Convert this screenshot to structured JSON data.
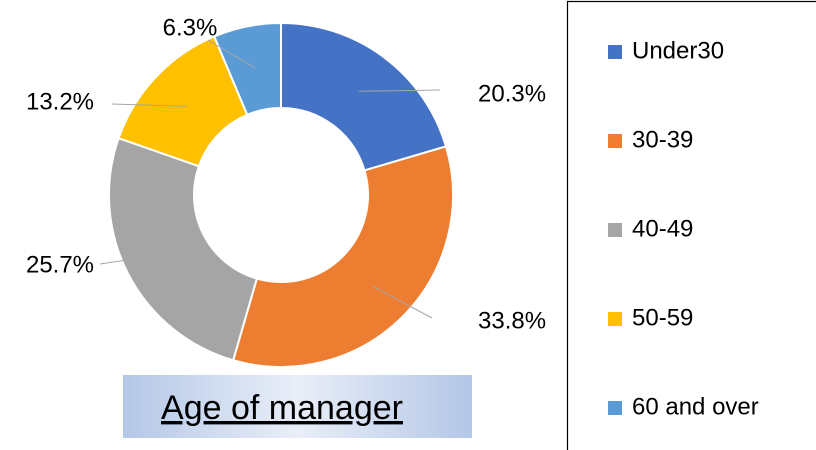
{
  "chart_data": {
    "type": "donut",
    "title": "Age of manager",
    "categories": [
      "Under30",
      "30-39",
      "40-49",
      "50-59",
      "60 and over"
    ],
    "values": [
      20.3,
      33.8,
      25.7,
      13.2,
      6.3
    ],
    "value_labels": [
      "20.3%",
      "33.8%",
      "25.7%",
      "13.2%",
      "6.3%"
    ],
    "colors": [
      "#4472c4",
      "#ed7d31",
      "#a5a5a5",
      "#ffc000",
      "#5b9bd5"
    ],
    "legend": "right"
  }
}
